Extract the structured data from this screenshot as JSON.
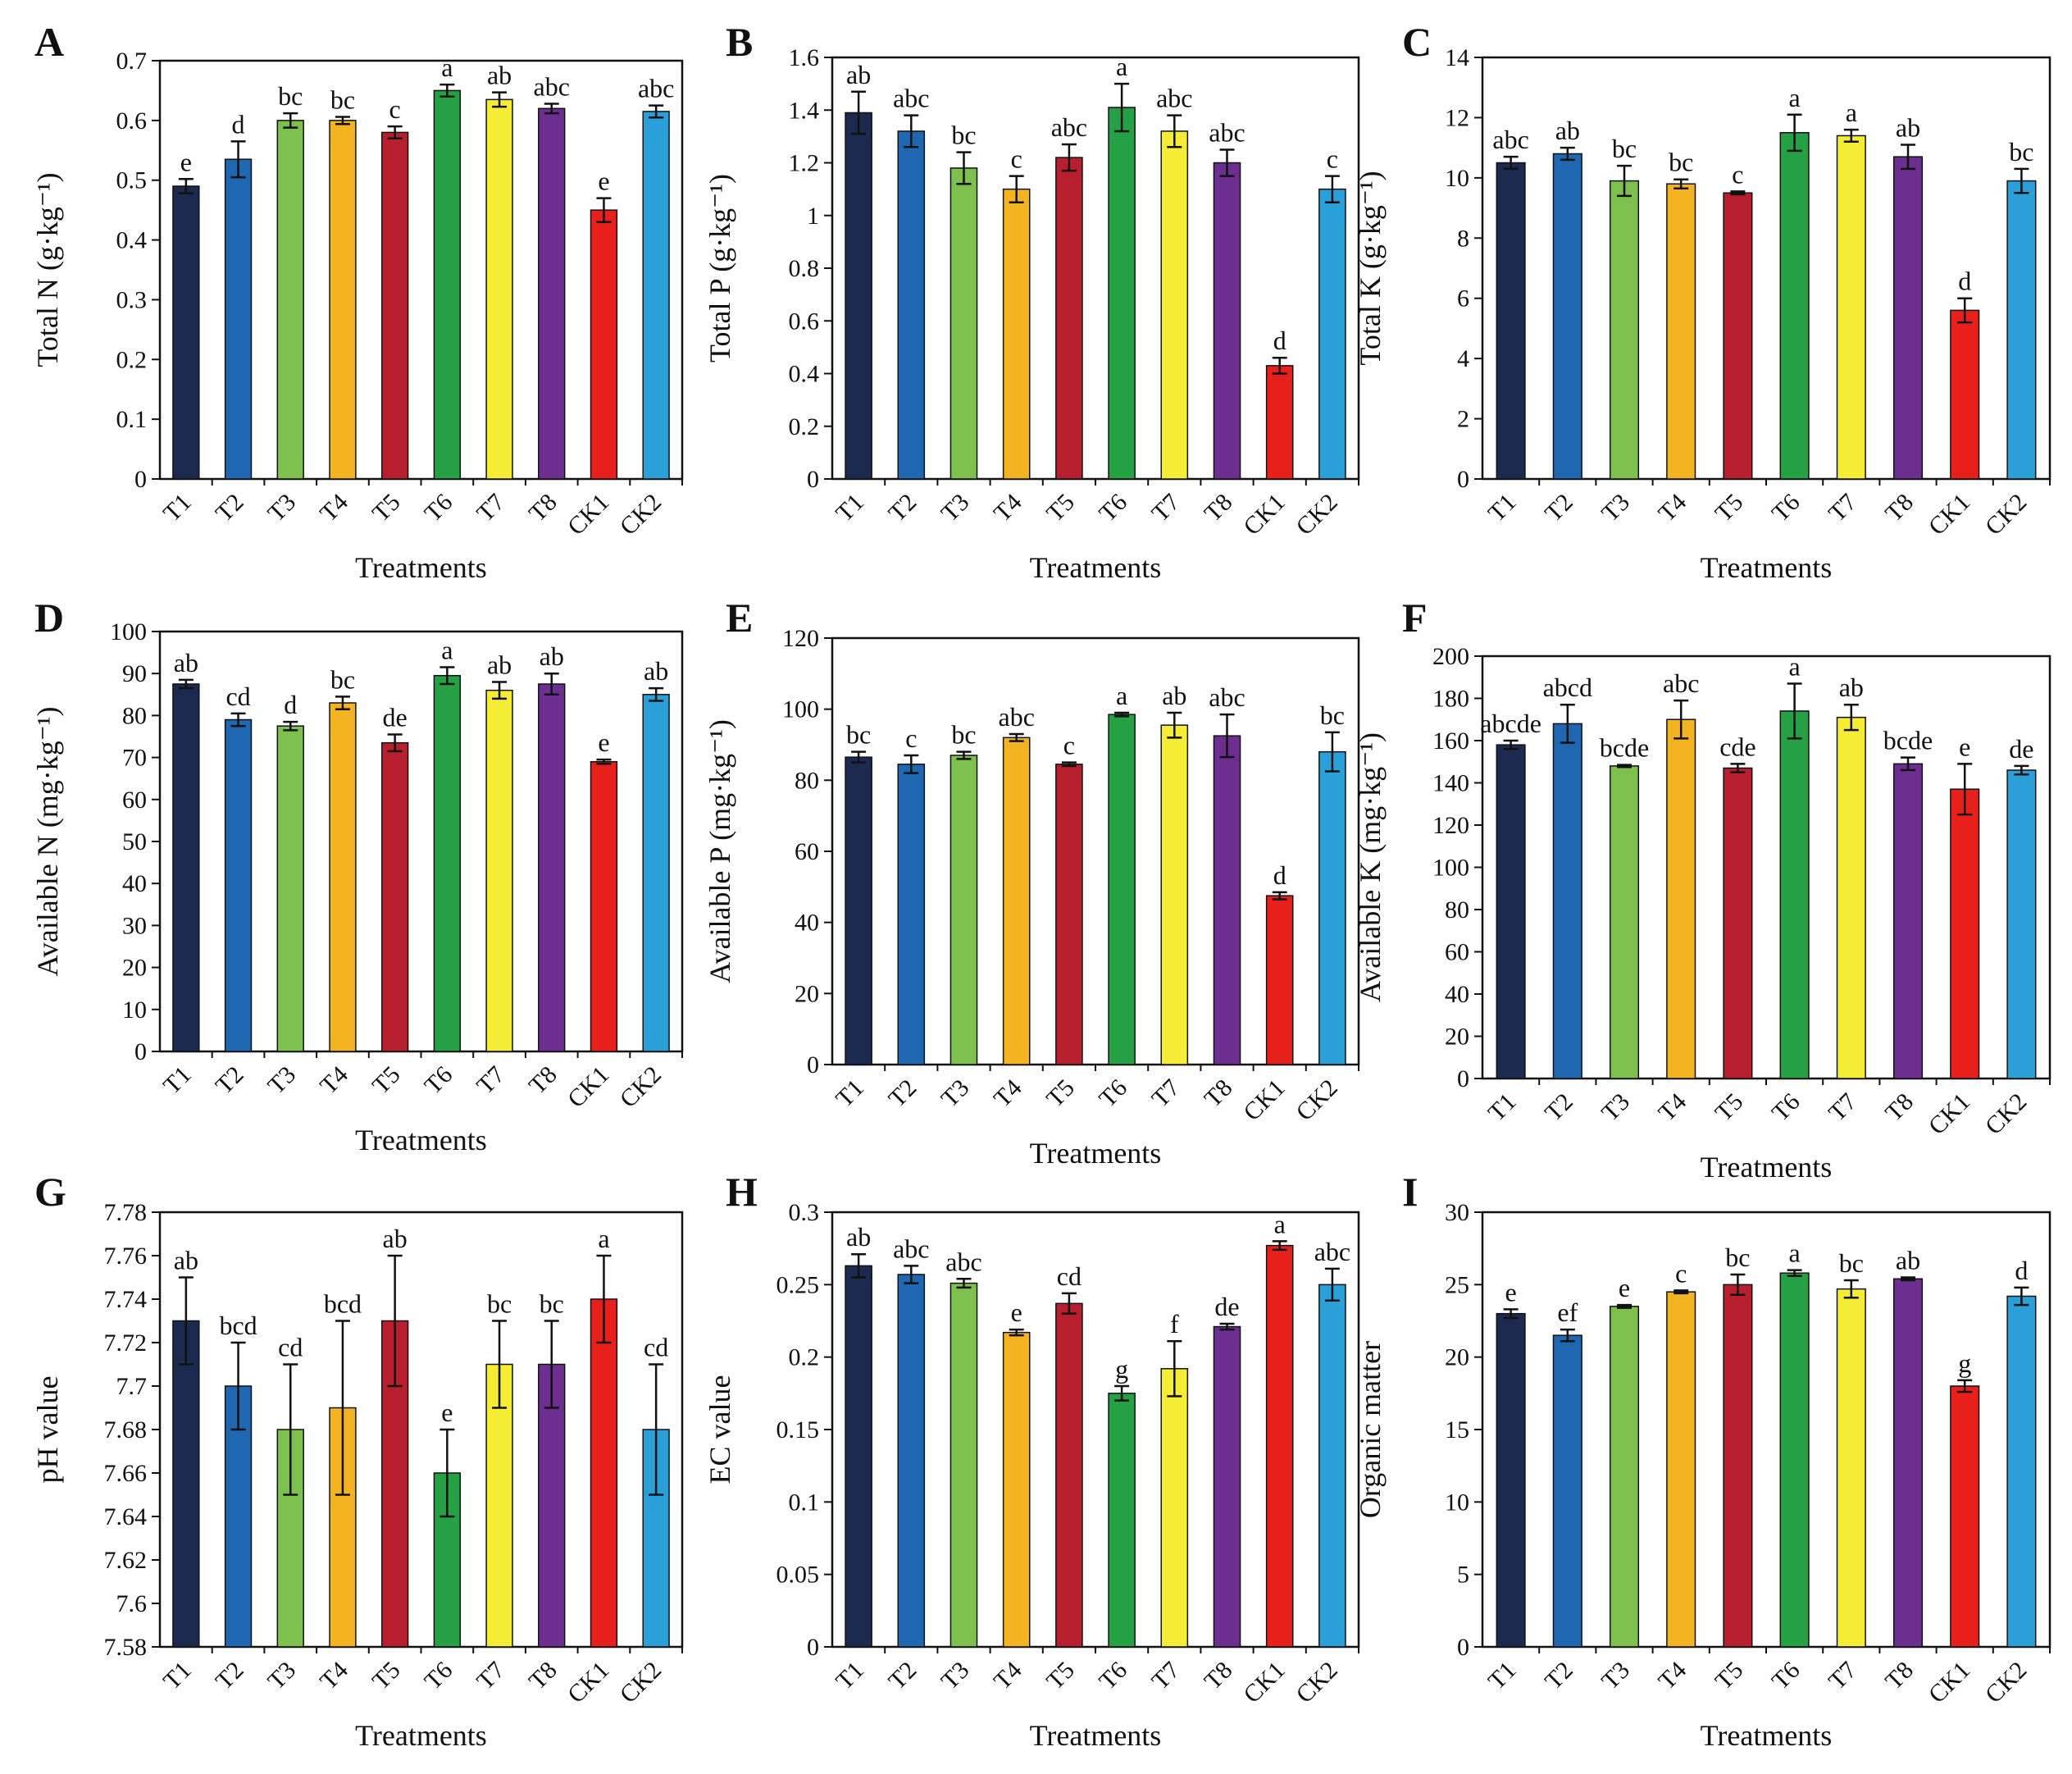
{
  "categories": [
    "T1",
    "T2",
    "T3",
    "T4",
    "T5",
    "T6",
    "T7",
    "T8",
    "CK1",
    "CK2"
  ],
  "bar_colors": [
    "#1b2a4e",
    "#1f67b1",
    "#7dc04e",
    "#f4b320",
    "#b81f2e",
    "#25a044",
    "#f5ec36",
    "#6c2f8f",
    "#e8201c",
    "#2a9fd8"
  ],
  "chart_data": [
    {
      "type": "bar",
      "panel": "A",
      "ylabel": "Total N (g·kg⁻¹)",
      "xlabel": "Treatments",
      "ylim": [
        0,
        0.7
      ],
      "ticks": [
        "0",
        "0.1",
        "0.2",
        "0.3",
        "0.4",
        "0.5",
        "0.6",
        "0.7"
      ],
      "categories": [
        "T1",
        "T2",
        "T3",
        "T4",
        "T5",
        "T6",
        "T7",
        "T8",
        "CK1",
        "CK2"
      ],
      "values": [
        0.49,
        0.535,
        0.6,
        0.6,
        0.58,
        0.65,
        0.635,
        0.62,
        0.45,
        0.615
      ],
      "errors": [
        0.012,
        0.03,
        0.012,
        0.006,
        0.01,
        0.01,
        0.012,
        0.008,
        0.02,
        0.01
      ],
      "letters": [
        "e",
        "d",
        "bc",
        "bc",
        "c",
        "a",
        "ab",
        "abc",
        "e",
        "abc"
      ]
    },
    {
      "type": "bar",
      "panel": "B",
      "ylabel": "Total P (g·kg⁻¹)",
      "xlabel": "Treatments",
      "ylim": [
        0,
        1.6
      ],
      "ticks": [
        "0",
        "0.2",
        "0.4",
        "0.6",
        "0.8",
        "1",
        "1.2",
        "1.4",
        "1.6"
      ],
      "categories": [
        "T1",
        "T2",
        "T3",
        "T4",
        "T5",
        "T6",
        "T7",
        "T8",
        "CK1",
        "CK2"
      ],
      "values": [
        1.39,
        1.32,
        1.18,
        1.1,
        1.22,
        1.41,
        1.32,
        1.2,
        0.43,
        1.1
      ],
      "errors": [
        0.08,
        0.06,
        0.06,
        0.05,
        0.05,
        0.09,
        0.06,
        0.05,
        0.03,
        0.05
      ],
      "letters": [
        "ab",
        "abc",
        "bc",
        "c",
        "abc",
        "a",
        "abc",
        "abc",
        "d",
        "c"
      ]
    },
    {
      "type": "bar",
      "panel": "C",
      "ylabel": "Total K (g·kg⁻¹)",
      "xlabel": "Treatments",
      "ylim": [
        0,
        14
      ],
      "ticks": [
        "0",
        "2",
        "4",
        "6",
        "8",
        "10",
        "12",
        "14"
      ],
      "categories": [
        "T1",
        "T2",
        "T3",
        "T4",
        "T5",
        "T6",
        "T7",
        "T8",
        "CK1",
        "CK2"
      ],
      "values": [
        10.5,
        10.8,
        9.9,
        9.8,
        9.5,
        11.5,
        11.4,
        10.7,
        5.6,
        9.9
      ],
      "errors": [
        0.2,
        0.2,
        0.5,
        0.15,
        0.05,
        0.6,
        0.2,
        0.4,
        0.4,
        0.4
      ],
      "letters": [
        "abc",
        "ab",
        "bc",
        "bc",
        "c",
        "a",
        "a",
        "ab",
        "d",
        "bc"
      ]
    },
    {
      "type": "bar",
      "panel": "D",
      "ylabel": "Available N (mg·kg⁻¹)",
      "xlabel": "Treatments",
      "ylim": [
        0,
        100
      ],
      "ticks": [
        "0",
        "10",
        "20",
        "30",
        "40",
        "50",
        "60",
        "70",
        "80",
        "90",
        "100"
      ],
      "categories": [
        "T1",
        "T2",
        "T3",
        "T4",
        "T5",
        "T6",
        "T7",
        "T8",
        "CK1",
        "CK2"
      ],
      "values": [
        87.5,
        79,
        77.5,
        83,
        73.5,
        89.5,
        86,
        87.5,
        69,
        85
      ],
      "errors": [
        1,
        1.5,
        1,
        1.5,
        2,
        2,
        2,
        2.5,
        0.5,
        1.5
      ],
      "letters": [
        "ab",
        "cd",
        "d",
        "bc",
        "de",
        "a",
        "ab",
        "ab",
        "e",
        "ab"
      ]
    },
    {
      "type": "bar",
      "panel": "E",
      "ylabel": "Available P (mg·kg⁻¹)",
      "xlabel": "Treatments",
      "ylim": [
        0,
        120
      ],
      "ticks": [
        "0",
        "20",
        "40",
        "60",
        "80",
        "100",
        "120"
      ],
      "categories": [
        "T1",
        "T2",
        "T3",
        "T4",
        "T5",
        "T6",
        "T7",
        "T8",
        "CK1",
        "CK2"
      ],
      "values": [
        86.5,
        84.5,
        87,
        92,
        84.5,
        98.5,
        95.5,
        92.5,
        47.5,
        88
      ],
      "errors": [
        1.5,
        2.5,
        1,
        1,
        0.5,
        0.5,
        3.5,
        6,
        1,
        5.5
      ],
      "letters": [
        "bc",
        "c",
        "bc",
        "abc",
        "c",
        "a",
        "ab",
        "abc",
        "d",
        "bc"
      ]
    },
    {
      "type": "bar",
      "panel": "F",
      "ylabel": "Available K (mg·kg⁻¹)",
      "xlabel": "Treatments",
      "ylim": [
        0,
        200
      ],
      "ticks": [
        "0",
        "20",
        "40",
        "60",
        "80",
        "100",
        "120",
        "140",
        "160",
        "180",
        "200"
      ],
      "categories": [
        "T1",
        "T2",
        "T3",
        "T4",
        "T5",
        "T6",
        "T7",
        "T8",
        "CK1",
        "CK2"
      ],
      "values": [
        158,
        168,
        148,
        170,
        147,
        174,
        171,
        149,
        137,
        146
      ],
      "errors": [
        2,
        9,
        0.5,
        9,
        2,
        13,
        6,
        3,
        12,
        2
      ],
      "letters": [
        "abcde",
        "abcd",
        "bcde",
        "abc",
        "cde",
        "a",
        "ab",
        "bcde",
        "e",
        "de"
      ]
    },
    {
      "type": "bar",
      "panel": "G",
      "ylabel": "pH value",
      "xlabel": "Treatments",
      "ylim": [
        7.58,
        7.78
      ],
      "ticks": [
        "7.58",
        "7.6",
        "7.62",
        "7.64",
        "7.66",
        "7.68",
        "7.7",
        "7.72",
        "7.74",
        "7.76",
        "7.78"
      ],
      "categories": [
        "T1",
        "T2",
        "T3",
        "T4",
        "T5",
        "T6",
        "T7",
        "T8",
        "CK1",
        "CK2"
      ],
      "values": [
        7.73,
        7.7,
        7.68,
        7.69,
        7.73,
        7.66,
        7.71,
        7.71,
        7.74,
        7.68
      ],
      "errors": [
        0.02,
        0.02,
        0.03,
        0.04,
        0.03,
        0.02,
        0.02,
        0.02,
        0.02,
        0.03
      ],
      "letters": [
        "ab",
        "bcd",
        "cd",
        "bcd",
        "ab",
        "e",
        "bc",
        "bc",
        "a",
        "cd"
      ]
    },
    {
      "type": "bar",
      "panel": "H",
      "ylabel": "EC value",
      "xlabel": "Treatments",
      "ylim": [
        0,
        0.3
      ],
      "ticks": [
        "0",
        "0.05",
        "0.1",
        "0.15",
        "0.2",
        "0.25",
        "0.3"
      ],
      "categories": [
        "T1",
        "T2",
        "T3",
        "T4",
        "T5",
        "T6",
        "T7",
        "T8",
        "CK1",
        "CK2"
      ],
      "values": [
        0.263,
        0.257,
        0.251,
        0.217,
        0.237,
        0.175,
        0.192,
        0.221,
        0.277,
        0.25
      ],
      "errors": [
        0.008,
        0.006,
        0.003,
        0.002,
        0.007,
        0.005,
        0.019,
        0.002,
        0.003,
        0.011
      ],
      "letters": [
        "ab",
        "abc",
        "abc",
        "e",
        "cd",
        "g",
        "f",
        "de",
        "a",
        "abc"
      ]
    },
    {
      "type": "bar",
      "panel": "I",
      "ylabel": "Organic matter",
      "xlabel": "Treatments",
      "ylim": [
        0,
        30
      ],
      "ticks": [
        "0",
        "5",
        "10",
        "15",
        "20",
        "25",
        "30"
      ],
      "categories": [
        "T1",
        "T2",
        "T3",
        "T4",
        "T5",
        "T6",
        "T7",
        "T8",
        "CK1",
        "CK2"
      ],
      "values": [
        23,
        21.5,
        23.5,
        24.5,
        25,
        25.8,
        24.7,
        25.4,
        18,
        24.2
      ],
      "errors": [
        0.3,
        0.4,
        0.1,
        0.1,
        0.7,
        0.2,
        0.6,
        0.1,
        0.4,
        0.6
      ],
      "letters": [
        "e",
        "ef",
        "e",
        "c",
        "bc",
        "a",
        "bc",
        "ab",
        "g",
        "d"
      ]
    }
  ]
}
